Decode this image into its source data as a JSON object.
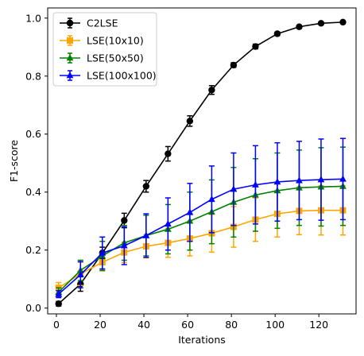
{
  "chart_data": {
    "type": "line",
    "title": "",
    "xlabel": "Iterations",
    "ylabel": "F1-score",
    "xlim": [
      -4,
      137
    ],
    "ylim": [
      -0.02,
      1.035
    ],
    "xticks": [
      0,
      20,
      40,
      60,
      80,
      100,
      120
    ],
    "yticks": [
      0.0,
      0.2,
      0.4,
      0.6,
      0.8,
      1.0
    ],
    "grid": false,
    "legend": "top-left",
    "x": [
      1,
      11,
      21,
      31,
      41,
      51,
      61,
      71,
      81,
      91,
      101,
      111,
      121,
      131
    ],
    "series": [
      {
        "name": "C2LSE",
        "color": "#000000",
        "marker": "circle",
        "values": [
          0.015,
          0.083,
          0.19,
          0.302,
          0.42,
          0.532,
          0.645,
          0.752,
          0.838,
          0.902,
          0.946,
          0.97,
          0.982,
          0.986
        ],
        "errors": [
          0.008,
          0.025,
          0.02,
          0.025,
          0.02,
          0.025,
          0.018,
          0.015,
          0.008,
          0.008,
          0.006,
          0.005,
          0.004,
          0.004
        ]
      },
      {
        "name": "LSE(10x10)",
        "color": "#ffa500",
        "marker": "square",
        "values": [
          0.07,
          0.118,
          0.158,
          0.192,
          0.213,
          0.225,
          0.24,
          0.258,
          0.28,
          0.305,
          0.325,
          0.335,
          0.337,
          0.337
        ],
        "errors": [
          0.018,
          0.04,
          0.03,
          0.035,
          0.04,
          0.05,
          0.06,
          0.065,
          0.07,
          0.075,
          0.08,
          0.082,
          0.085,
          0.085
        ]
      },
      {
        "name": "LSE(50x50)",
        "color": "#008000",
        "marker": "triangle-up",
        "values": [
          0.055,
          0.13,
          0.18,
          0.225,
          0.25,
          0.272,
          0.3,
          0.332,
          0.365,
          0.39,
          0.405,
          0.415,
          0.418,
          0.42
        ],
        "errors": [
          0.015,
          0.035,
          0.05,
          0.06,
          0.07,
          0.085,
          0.1,
          0.11,
          0.12,
          0.125,
          0.13,
          0.13,
          0.135,
          0.135
        ]
      },
      {
        "name": "LSE(100x100)",
        "color": "#0000ff",
        "marker": "triangle-up",
        "values": [
          0.048,
          0.115,
          0.19,
          0.215,
          0.25,
          0.29,
          0.33,
          0.375,
          0.41,
          0.425,
          0.435,
          0.44,
          0.443,
          0.445
        ],
        "errors": [
          0.012,
          0.045,
          0.055,
          0.065,
          0.075,
          0.09,
          0.1,
          0.115,
          0.125,
          0.135,
          0.135,
          0.135,
          0.14,
          0.14
        ]
      }
    ]
  }
}
